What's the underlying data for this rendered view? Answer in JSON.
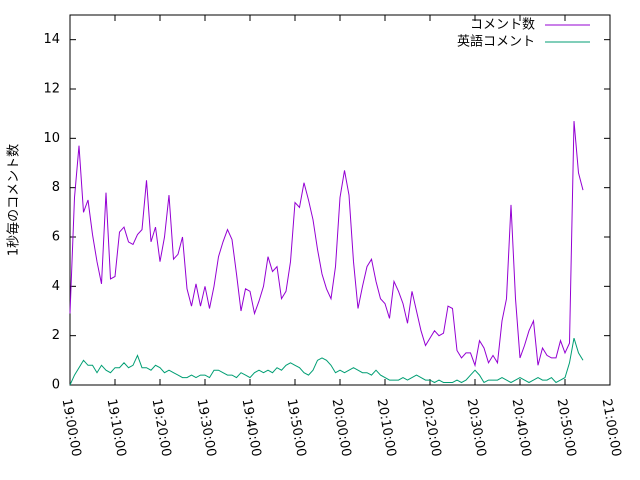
{
  "chart_data": {
    "type": "line",
    "ylabel": "1秒毎のコメント数",
    "x": [
      "19:00:00",
      "19:01:00",
      "19:02:00",
      "19:03:00",
      "19:04:00",
      "19:05:00",
      "19:06:00",
      "19:07:00",
      "19:08:00",
      "19:09:00",
      "19:10:00",
      "19:11:00",
      "19:12:00",
      "19:13:00",
      "19:14:00",
      "19:15:00",
      "19:16:00",
      "19:17:00",
      "19:18:00",
      "19:19:00",
      "19:20:00",
      "19:21:00",
      "19:22:00",
      "19:23:00",
      "19:24:00",
      "19:25:00",
      "19:26:00",
      "19:27:00",
      "19:28:00",
      "19:29:00",
      "19:30:00",
      "19:31:00",
      "19:32:00",
      "19:33:00",
      "19:34:00",
      "19:35:00",
      "19:36:00",
      "19:37:00",
      "19:38:00",
      "19:39:00",
      "19:40:00",
      "19:41:00",
      "19:42:00",
      "19:43:00",
      "19:44:00",
      "19:45:00",
      "19:46:00",
      "19:47:00",
      "19:48:00",
      "19:49:00",
      "19:50:00",
      "19:51:00",
      "19:52:00",
      "19:53:00",
      "19:54:00",
      "19:55:00",
      "19:56:00",
      "19:57:00",
      "19:58:00",
      "19:59:00",
      "20:00:00",
      "20:01:00",
      "20:02:00",
      "20:03:00",
      "20:04:00",
      "20:05:00",
      "20:06:00",
      "20:07:00",
      "20:08:00",
      "20:09:00",
      "20:10:00",
      "20:11:00",
      "20:12:00",
      "20:13:00",
      "20:14:00",
      "20:15:00",
      "20:16:00",
      "20:17:00",
      "20:18:00",
      "20:19:00",
      "20:20:00",
      "20:21:00",
      "20:22:00",
      "20:23:00",
      "20:24:00",
      "20:25:00",
      "20:26:00",
      "20:27:00",
      "20:28:00",
      "20:29:00",
      "20:30:00",
      "20:31:00",
      "20:32:00",
      "20:33:00",
      "20:34:00",
      "20:35:00",
      "20:36:00",
      "20:37:00",
      "20:38:00",
      "20:39:00",
      "20:40:00",
      "20:41:00",
      "20:42:00",
      "20:43:00",
      "20:44:00",
      "20:45:00",
      "20:46:00",
      "20:47:00",
      "20:48:00",
      "20:49:00",
      "20:50:00",
      "20:51:00",
      "20:52:00",
      "20:53:00",
      "20:54:00"
    ],
    "series": [
      {
        "name": "コメント数",
        "color": "#9400d3",
        "values": [
          2.9,
          7.6,
          9.7,
          7.0,
          7.5,
          6.1,
          5.0,
          4.1,
          7.8,
          4.3,
          4.4,
          6.2,
          6.4,
          5.8,
          5.7,
          6.1,
          6.3,
          8.3,
          5.8,
          6.4,
          5.0,
          6.0,
          7.7,
          5.1,
          5.3,
          6.0,
          3.9,
          3.2,
          4.1,
          3.2,
          4.0,
          3.1,
          4.0,
          5.2,
          5.8,
          6.3,
          5.9,
          4.5,
          3.0,
          3.9,
          3.8,
          2.9,
          3.4,
          4.0,
          5.2,
          4.6,
          4.8,
          3.5,
          3.8,
          5.0,
          7.4,
          7.2,
          8.2,
          7.5,
          6.7,
          5.5,
          4.5,
          3.9,
          3.5,
          4.8,
          7.6,
          8.7,
          7.7,
          5.0,
          3.1,
          4.0,
          4.8,
          5.1,
          4.2,
          3.5,
          3.3,
          2.7,
          4.2,
          3.8,
          3.3,
          2.5,
          3.8,
          3.0,
          2.2,
          1.6,
          1.9,
          2.2,
          2.0,
          2.1,
          3.2,
          3.1,
          1.4,
          1.1,
          1.3,
          1.3,
          0.8,
          1.8,
          1.5,
          0.9,
          1.2,
          0.9,
          2.6,
          3.5,
          7.3,
          3.5,
          1.1,
          1.6,
          2.2,
          2.6,
          0.8,
          1.5,
          1.2,
          1.1,
          1.1,
          1.8,
          1.3,
          1.7,
          10.7,
          8.6,
          7.9
        ]
      },
      {
        "name": "英語コメント",
        "color": "#009e73",
        "values": [
          0.0,
          0.4,
          0.7,
          1.0,
          0.8,
          0.8,
          0.5,
          0.8,
          0.6,
          0.5,
          0.7,
          0.7,
          0.9,
          0.7,
          0.8,
          1.2,
          0.7,
          0.7,
          0.6,
          0.8,
          0.7,
          0.5,
          0.6,
          0.5,
          0.4,
          0.3,
          0.3,
          0.4,
          0.3,
          0.4,
          0.4,
          0.3,
          0.6,
          0.6,
          0.5,
          0.4,
          0.4,
          0.3,
          0.5,
          0.4,
          0.3,
          0.5,
          0.6,
          0.5,
          0.6,
          0.5,
          0.7,
          0.6,
          0.8,
          0.9,
          0.8,
          0.7,
          0.5,
          0.4,
          0.6,
          1.0,
          1.1,
          1.0,
          0.8,
          0.5,
          0.6,
          0.5,
          0.6,
          0.7,
          0.6,
          0.5,
          0.5,
          0.4,
          0.6,
          0.4,
          0.3,
          0.2,
          0.2,
          0.2,
          0.3,
          0.2,
          0.3,
          0.4,
          0.3,
          0.2,
          0.2,
          0.1,
          0.2,
          0.1,
          0.1,
          0.1,
          0.2,
          0.1,
          0.2,
          0.4,
          0.6,
          0.4,
          0.1,
          0.2,
          0.2,
          0.2,
          0.3,
          0.2,
          0.1,
          0.2,
          0.3,
          0.2,
          0.1,
          0.2,
          0.3,
          0.2,
          0.2,
          0.3,
          0.1,
          0.2,
          0.3,
          0.9,
          1.9,
          1.3,
          1.0
        ]
      }
    ],
    "xlim": [
      "19:00:00",
      "21:00:00"
    ],
    "xticks": [
      "19:00:00",
      "19:10:00",
      "19:20:00",
      "19:30:00",
      "19:40:00",
      "19:50:00",
      "20:00:00",
      "20:10:00",
      "20:20:00",
      "20:30:00",
      "20:40:00",
      "20:50:00",
      "21:00:00"
    ],
    "ylim": [
      0,
      15
    ],
    "yticks": [
      0,
      2,
      4,
      6,
      8,
      10,
      12,
      14
    ],
    "legend": "top-right"
  }
}
